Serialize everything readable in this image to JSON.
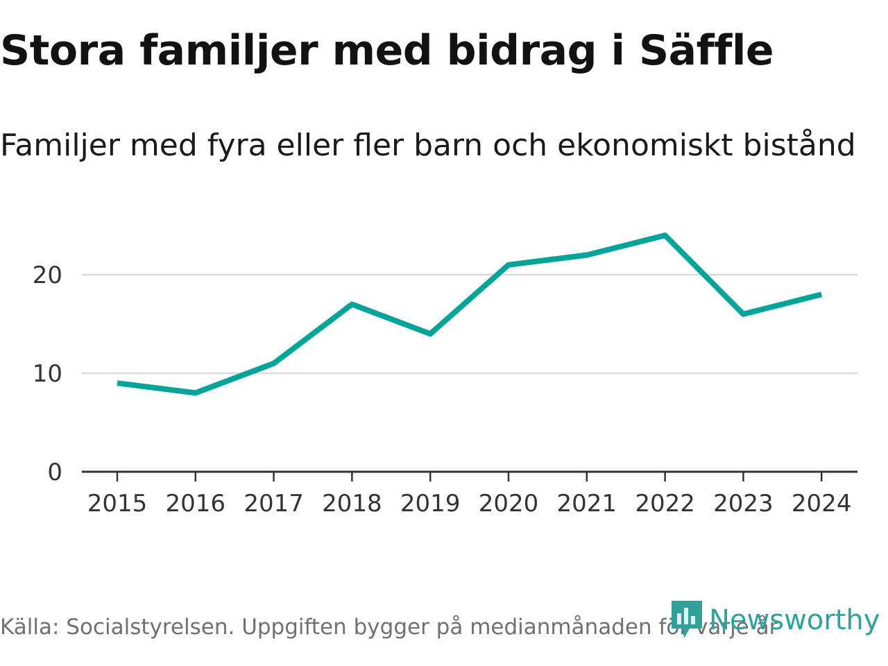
{
  "header": {
    "title": "Stora familjer med bidrag i Säffle",
    "subtitle": "Familjer med fyra eller fler barn och ekonomiskt bistånd"
  },
  "footer": {
    "source": "Källa: Socialstyrelsen. Uppgiften bygger på medianmånaden för varje år",
    "brand": "Newsworthy"
  },
  "colors": {
    "line": "#00a499",
    "grid": "#d9d9d9",
    "axis": "#333333",
    "brand": "#2fa39a"
  },
  "chart_data": {
    "type": "line",
    "title": "Stora familjer med bidrag i Säffle",
    "subtitle": "Familjer med fyra eller fler barn och ekonomiskt bistånd",
    "xlabel": "",
    "ylabel": "",
    "categories": [
      "2015",
      "2016",
      "2017",
      "2018",
      "2019",
      "2020",
      "2021",
      "2022",
      "2023",
      "2024"
    ],
    "series": [
      {
        "name": "Familjer med fyra eller fler barn och ekonomiskt bistånd",
        "values": [
          9,
          8,
          11,
          17,
          14,
          21,
          22,
          24,
          16,
          18
        ]
      }
    ],
    "yticks": [
      0,
      10,
      20
    ],
    "ylim": [
      0,
      24
    ],
    "grid": true
  }
}
